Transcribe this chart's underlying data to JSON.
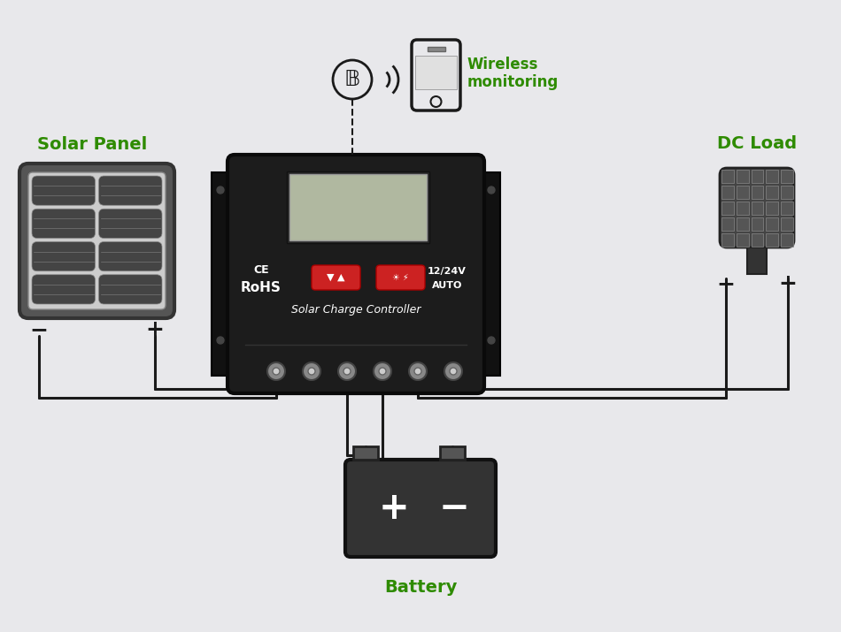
{
  "bg_color": "#e8e8eb",
  "green_color": "#2e8b00",
  "dark_color": "#1a1a1a",
  "wire_color": "#1a1a1a",
  "label_solar": "Solar Panel",
  "label_dc": "DC Load",
  "label_battery": "Battery",
  "label_wireless": "Wireless\nmonitoring",
  "label_ce_rohs": "CE\nRoHS",
  "label_voltage": "12/24V\nAUTO",
  "label_scc": "Solar Charge Controller",
  "panel_frame_color": "#555555",
  "panel_cell_color": "#444444",
  "panel_bg_color": "#d0d0d0",
  "controller_body_color": "#1c1c1c",
  "lcd_color": "#b0b8a0",
  "red_btn_color": "#cc2222",
  "terminal_color": "#cccccc",
  "battery_color": "#333333",
  "lamp_color": "#444444"
}
